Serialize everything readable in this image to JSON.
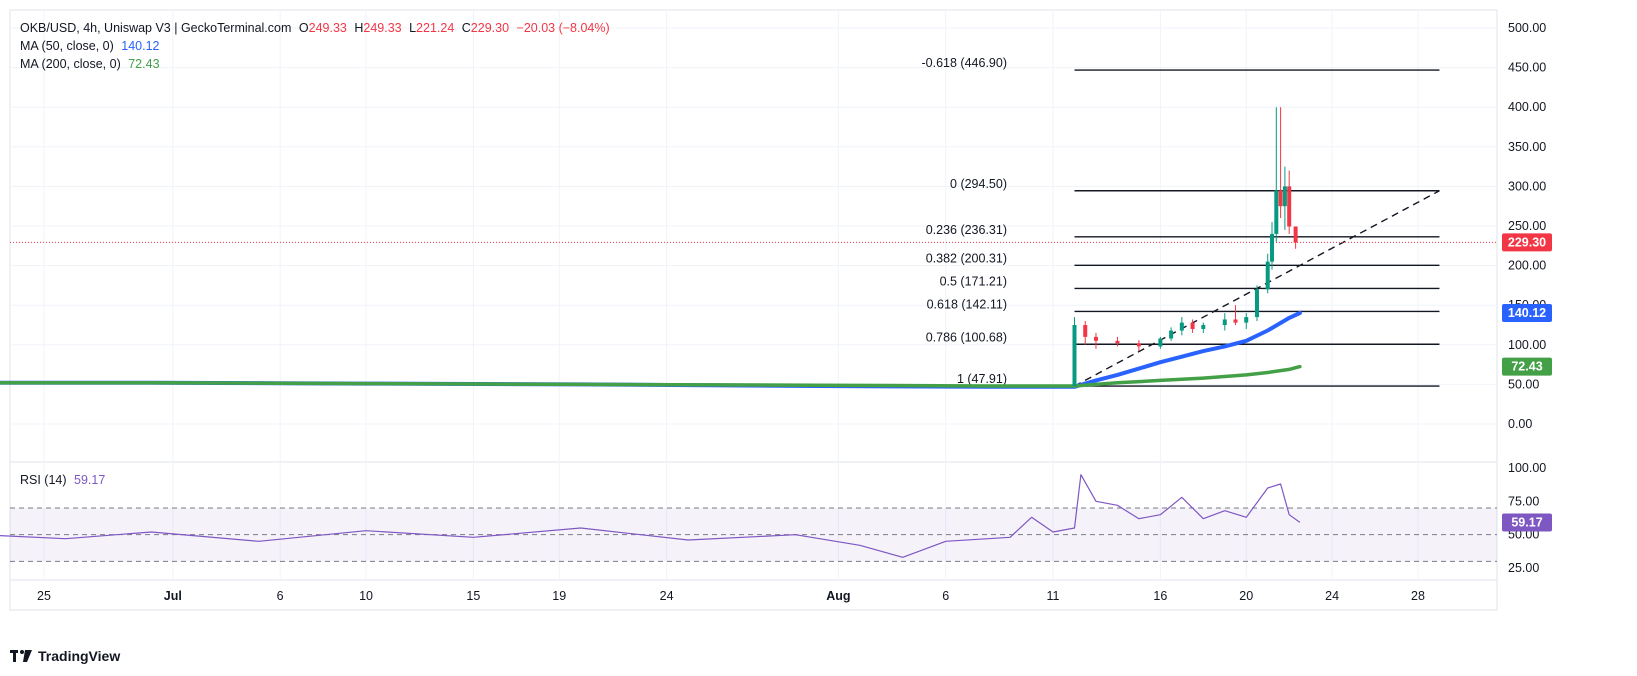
{
  "header": {
    "symbol_line": "OKB/USD, 4h, Uniswap V3 | GeckoTerminal.com",
    "o_label": "O",
    "o_value": "249.33",
    "h_label": "H",
    "h_value": "249.33",
    "l_label": "L",
    "l_value": "221.24",
    "c_label": "C",
    "c_value": "229.30",
    "change": "−20.03 (−8.04%)"
  },
  "ma50": {
    "label": "MA (50, close, 0)",
    "value": "140.12"
  },
  "ma200": {
    "label": "MA (200, close, 0)",
    "value": "72.43"
  },
  "rsi": {
    "label": "RSI (14)",
    "value": "59.17"
  },
  "brand": {
    "name": "TradingView"
  },
  "colors": {
    "up": "#089981",
    "down": "#f23645",
    "ma50": "#2962ff",
    "ma200": "#43a047",
    "rsi": "#7e57c2",
    "price_label": "#f23645"
  },
  "chart_data": [
    {
      "type": "line",
      "title": "",
      "x_tick_labels": [
        "25",
        "Jul",
        "6",
        "10",
        "15",
        "19",
        "24",
        "Aug",
        "6",
        "11",
        "16",
        "20",
        "24",
        "28"
      ],
      "y_tick_labels": [
        "500.00",
        "450.00",
        "400.00",
        "350.00",
        "300.00",
        "250.00",
        "200.00",
        "150.00",
        "100.00",
        "50.00",
        "0.00"
      ],
      "ylim": [
        -30,
        510
      ],
      "current_price": {
        "value": 229.3,
        "label": "229.30"
      },
      "axis_badges": [
        {
          "name": "price",
          "value": 229.3,
          "label": "229.30",
          "color": "#f23645"
        },
        {
          "name": "ma50",
          "value": 140.12,
          "label": "140.12",
          "color": "#2962ff"
        },
        {
          "name": "ma200",
          "value": 72.43,
          "label": "72.43",
          "color": "#43a047"
        }
      ],
      "fibonacci": [
        {
          "ratio": -0.618,
          "value": 446.9,
          "label": "-0.618 (446.90)"
        },
        {
          "ratio": 0,
          "value": 294.5,
          "label": "0 (294.50)"
        },
        {
          "ratio": 0.236,
          "value": 236.31,
          "label": "0.236 (236.31)"
        },
        {
          "ratio": 0.382,
          "value": 200.31,
          "label": "0.382 (200.31)"
        },
        {
          "ratio": 0.5,
          "value": 171.21,
          "label": "0.5 (171.21)"
        },
        {
          "ratio": 0.618,
          "value": 142.11,
          "label": "0.618 (142.11)"
        },
        {
          "ratio": 0.786,
          "value": 100.68,
          "label": "0.786 (100.68)"
        },
        {
          "ratio": 1,
          "value": 47.91,
          "label": "1 (47.91)"
        }
      ],
      "trend_line": {
        "from": {
          "date": "Aug 12",
          "value": 47.91
        },
        "to": {
          "date": "Aug 29",
          "value": 294.5
        }
      },
      "series": [
        {
          "name": "MA (50, close, 0)",
          "color": "#2962ff",
          "points": [
            [
              "Jun 22",
              52
            ],
            [
              "Jun 30",
              52
            ],
            [
              "Jul 10",
              51
            ],
            [
              "Jul 20",
              50
            ],
            [
              "Jul 31",
              48
            ],
            [
              "Aug 8",
              47
            ],
            [
              "Aug 12",
              47
            ],
            [
              "Aug 13",
              55
            ],
            [
              "Aug 14",
              62
            ],
            [
              "Aug 15",
              70
            ],
            [
              "Aug 16",
              78
            ],
            [
              "Aug 17",
              85
            ],
            [
              "Aug 18",
              92
            ],
            [
              "Aug 19",
              98
            ],
            [
              "Aug 20",
              105
            ],
            [
              "Aug 21",
              118
            ],
            [
              "Aug 22",
              134
            ],
            [
              "Aug 22.5",
              140.12
            ]
          ]
        },
        {
          "name": "MA (200, close, 0)",
          "color": "#43a047",
          "points": [
            [
              "Jun 22",
              52
            ],
            [
              "Jun 30",
              52
            ],
            [
              "Jul 10",
              51
            ],
            [
              "Jul 20",
              50
            ],
            [
              "Jul 31",
              49
            ],
            [
              "Aug 8",
              48
            ],
            [
              "Aug 12",
              48
            ],
            [
              "Aug 14",
              52
            ],
            [
              "Aug 16",
              55
            ],
            [
              "Aug 18",
              58
            ],
            [
              "Aug 20",
              62
            ],
            [
              "Aug 21",
              65
            ],
            [
              "Aug 22",
              69
            ],
            [
              "Aug 22.5",
              72.43
            ]
          ]
        }
      ],
      "candles_recent": [
        [
          "Aug 12",
          48,
          135,
          48,
          125
        ],
        [
          "Aug 12.5",
          125,
          130,
          100,
          110
        ],
        [
          "Aug 13",
          110,
          115,
          95,
          105
        ],
        [
          "Aug 14",
          105,
          110,
          98,
          102
        ],
        [
          "Aug 15",
          102,
          106,
          92,
          98
        ],
        [
          "Aug 16",
          98,
          110,
          95,
          108
        ],
        [
          "Aug 16.5",
          108,
          122,
          105,
          118
        ],
        [
          "Aug 17",
          118,
          135,
          112,
          128
        ],
        [
          "Aug 17.5",
          128,
          132,
          115,
          120
        ],
        [
          "Aug 18",
          120,
          128,
          115,
          125
        ],
        [
          "Aug 19",
          125,
          140,
          118,
          132
        ],
        [
          "Aug 19.5",
          132,
          150,
          125,
          128
        ],
        [
          "Aug 20",
          128,
          140,
          120,
          135
        ],
        [
          "Aug 20.5",
          135,
          175,
          130,
          170
        ],
        [
          "Aug 21",
          170,
          215,
          165,
          205
        ],
        [
          "Aug 21.2",
          205,
          255,
          195,
          240
        ],
        [
          "Aug 21.4",
          240,
          400,
          230,
          295
        ],
        [
          "Aug 21.6",
          295,
          400,
          260,
          275
        ],
        [
          "Aug 21.8",
          275,
          325,
          245,
          300
        ],
        [
          "Aug 22",
          300,
          320,
          240,
          249.33
        ],
        [
          "Aug 22.3",
          249.33,
          249.33,
          221.24,
          229.3
        ]
      ]
    },
    {
      "type": "line",
      "name": "RSI (14)",
      "title": "",
      "y_tick_labels": [
        "100.00",
        "75.00",
        "50.00",
        "25.00"
      ],
      "ylim": [
        20,
        100
      ],
      "bands": {
        "upper": 70,
        "middle": 50,
        "lower": 30
      },
      "current": {
        "value": 59.17,
        "label": "59.17"
      },
      "series": [
        {
          "name": "RSI (14)",
          "color": "#7e57c2",
          "points": [
            [
              "Jun 22",
              50
            ],
            [
              "Jun 26",
              47
            ],
            [
              "Jun 30",
              52
            ],
            [
              "Jul 5",
              45
            ],
            [
              "Jul 10",
              53
            ],
            [
              "Jul 15",
              48
            ],
            [
              "Jul 20",
              55
            ],
            [
              "Jul 25",
              46
            ],
            [
              "Jul 30",
              50
            ],
            [
              "Aug 2",
              42
            ],
            [
              "Aug 4",
              33
            ],
            [
              "Aug 6",
              45
            ],
            [
              "Aug 9",
              48
            ],
            [
              "Aug 10",
              63
            ],
            [
              "Aug 11",
              52
            ],
            [
              "Aug 12",
              55
            ],
            [
              "Aug 12.3",
              95
            ],
            [
              "Aug 13",
              75
            ],
            [
              "Aug 14",
              72
            ],
            [
              "Aug 15",
              62
            ],
            [
              "Aug 16",
              65
            ],
            [
              "Aug 17",
              78
            ],
            [
              "Aug 18",
              62
            ],
            [
              "Aug 19",
              68
            ],
            [
              "Aug 20",
              63
            ],
            [
              "Aug 21",
              85
            ],
            [
              "Aug 21.6",
              88
            ],
            [
              "Aug 22",
              65
            ],
            [
              "Aug 22.5",
              59.17
            ]
          ]
        }
      ]
    }
  ]
}
